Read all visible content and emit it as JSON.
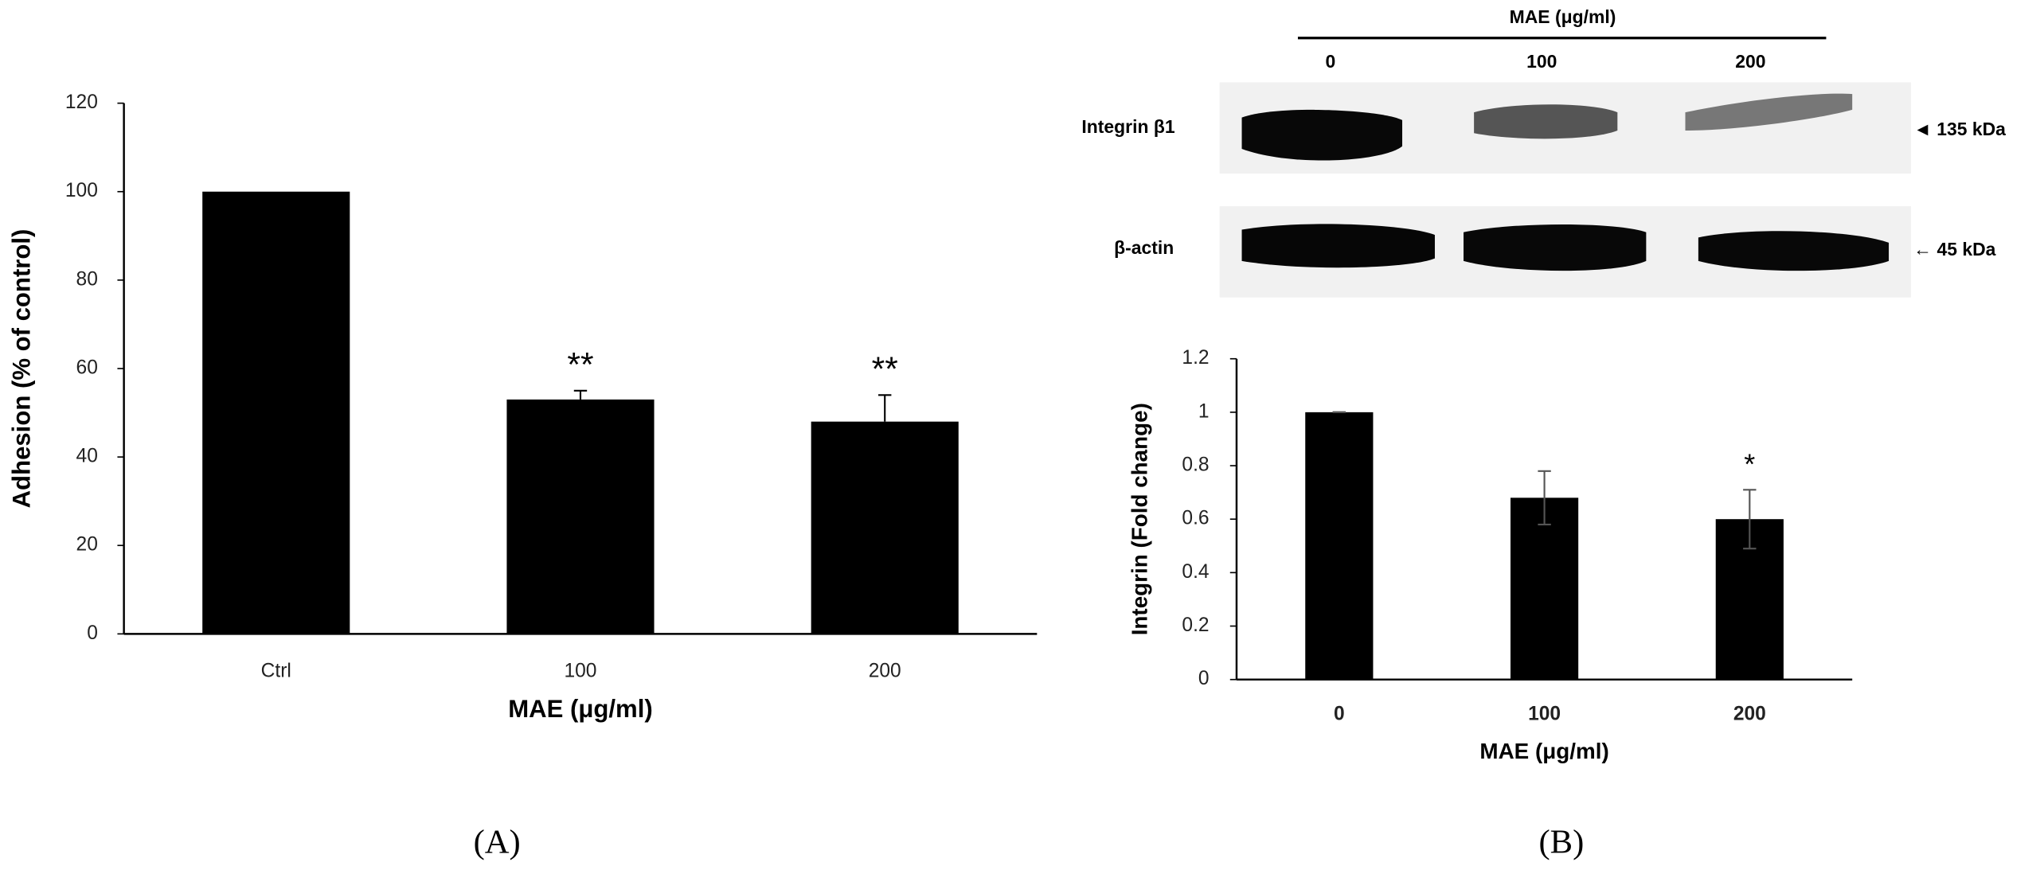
{
  "chart_data": [
    {
      "type": "bar",
      "color": "#000000",
      "error_bars": "up",
      "categories": [
        "Ctrl",
        "100",
        "200"
      ],
      "values": [
        100,
        53,
        48
      ],
      "errors": [
        null,
        2,
        6
      ],
      "annotations": [
        null,
        "**",
        "**"
      ],
      "ylim": [
        0,
        120
      ],
      "yticks": [
        0,
        20,
        40,
        60,
        80,
        100,
        120
      ],
      "grid": false,
      "y_label": "Adhesion (% of control)",
      "x_label": "MAE (μg/ml)"
    },
    {
      "type": "bar",
      "color": "#000000",
      "error_bars": "both",
      "categories": [
        "0",
        "100",
        "200"
      ],
      "values": [
        1,
        0.68,
        0.6
      ],
      "errors": [
        0,
        0.1,
        0.11
      ],
      "annotations": [
        null,
        null,
        "*"
      ],
      "ylim": [
        0,
        1.2
      ],
      "yticks": [
        0,
        0.2,
        0.4,
        0.6,
        0.8,
        1,
        1.2
      ],
      "grid": false,
      "y_label": "Integrin  (Fold change)",
      "x_label": "MAE (μg/ml)"
    }
  ],
  "blot": {
    "header": "MAE (μg/ml)",
    "lanes": [
      "0",
      "100",
      "200"
    ],
    "rows": [
      {
        "label": "Integrin β1",
        "marker": "◄ 135 kDa"
      },
      {
        "label": "β-actin",
        "marker": "← 45 kDa"
      }
    ]
  },
  "panel_labels": [
    "(A)",
    "(B)"
  ]
}
